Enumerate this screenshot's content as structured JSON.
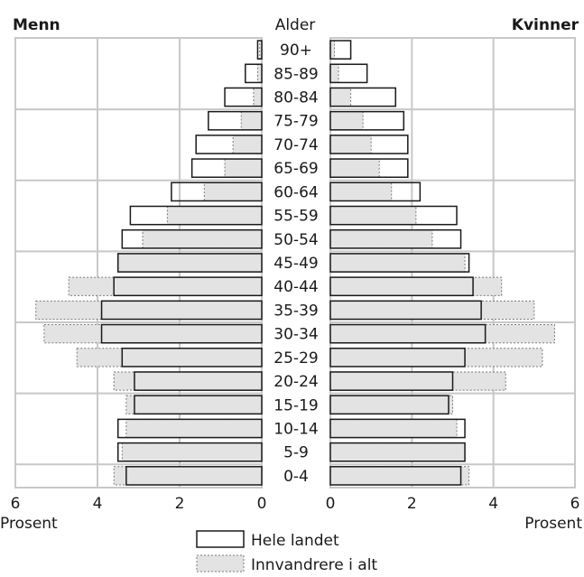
{
  "chart_data": {
    "type": "bar",
    "orientation": "horizontal-population-pyramid",
    "left_title": "Menn",
    "right_title": "Kvinner",
    "center_label": "Alder",
    "x_unit_label_left": "Prosent",
    "x_unit_label_right": "Prosent",
    "xlim": [
      0,
      6
    ],
    "x_ticks": [
      "6",
      "4",
      "2",
      "0",
      "0",
      "2",
      "4",
      "6"
    ],
    "grid": true,
    "legend_position": "bottom-center",
    "categories": [
      "90+",
      "85-89",
      "80-84",
      "75-79",
      "70-74",
      "65-69",
      "60-64",
      "55-59",
      "50-54",
      "45-49",
      "40-44",
      "35-39",
      "30-34",
      "25-29",
      "20-24",
      "15-19",
      "10-14",
      "5-9",
      "0-4"
    ],
    "series": [
      {
        "name": "Hele landet",
        "style": "outline",
        "men": [
          0.1,
          0.4,
          0.9,
          1.3,
          1.6,
          1.7,
          2.2,
          3.2,
          3.4,
          3.5,
          3.6,
          3.9,
          3.9,
          3.4,
          3.1,
          3.1,
          3.5,
          3.5,
          3.3
        ],
        "women": [
          0.5,
          0.9,
          1.6,
          1.8,
          1.9,
          1.9,
          2.2,
          3.1,
          3.2,
          3.4,
          3.5,
          3.7,
          3.8,
          3.3,
          3.0,
          2.9,
          3.3,
          3.3,
          3.2
        ]
      },
      {
        "name": "Innvandrere i alt",
        "style": "dotted-grey-fill",
        "men": [
          0.05,
          0.1,
          0.2,
          0.5,
          0.7,
          0.9,
          1.4,
          2.3,
          2.9,
          3.5,
          4.7,
          5.5,
          5.3,
          4.5,
          3.6,
          3.3,
          3.3,
          3.4,
          3.6
        ],
        "women": [
          0.1,
          0.2,
          0.5,
          0.8,
          1.0,
          1.2,
          1.5,
          2.1,
          2.5,
          3.3,
          4.2,
          5.0,
          5.5,
          5.2,
          4.3,
          3.0,
          3.1,
          3.3,
          3.4
        ]
      }
    ]
  },
  "colors": {
    "background": "#ffffff",
    "grid": "#c8c8c8",
    "outline_bar": "#1a1a1a",
    "immigrant_fill": "#e3e3e3",
    "immigrant_stroke": "#7a7a7a"
  }
}
